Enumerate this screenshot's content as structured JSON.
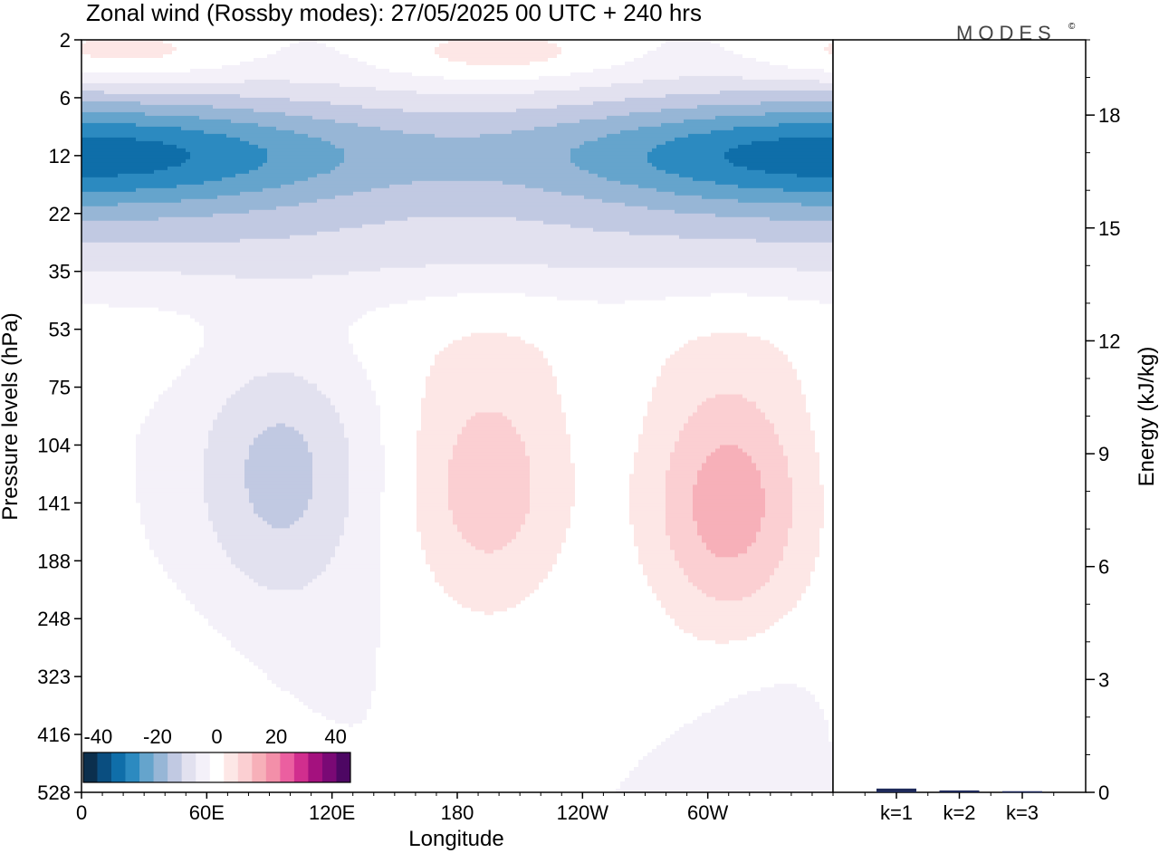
{
  "chart_data": [
    {
      "type": "heatmap",
      "title": "Zonal wind (Rossby modes):  27/05/2025  00 UTC  + 240 hrs",
      "xlabel": "Longitude",
      "ylabel": "Pressure levels (hPa)",
      "x_tick_labels": [
        "0",
        "60E",
        "120E",
        "180",
        "120W",
        "60W"
      ],
      "x_tick_lon_deg": [
        0,
        60,
        120,
        180,
        240,
        300
      ],
      "xlim_deg": [
        0,
        360
      ],
      "y_tick_labels": [
        "2",
        "6",
        "12",
        "22",
        "35",
        "53",
        "75",
        "104",
        "141",
        "188",
        "248",
        "323",
        "416",
        "528"
      ],
      "y_scale": "level index (pressure increasing downward)",
      "colorbar": {
        "labels": [
          "-40",
          "-20",
          "0",
          "20",
          "40"
        ],
        "label_values": [
          -40,
          -20,
          0,
          20,
          40
        ],
        "range": [
          -45,
          45
        ],
        "step": 5,
        "colors": [
          "#0b2f4d",
          "#0a4e80",
          "#0f6ea9",
          "#2c8ac0",
          "#65a4cc",
          "#97b6d6",
          "#c1c9e2",
          "#e2e1ef",
          "#f4f1f9",
          "#ffffff",
          "#fde7e6",
          "#fbcfd2",
          "#f7b0b9",
          "#f38fa9",
          "#eb5fa0",
          "#d12e8e",
          "#a4117e",
          "#7a0975",
          "#4d0763"
        ]
      },
      "features": [
        {
          "lon": 30,
          "level": 1.85,
          "value": -35,
          "desc": "easterly maximum west end"
        },
        {
          "lon": 180,
          "level": 2.1,
          "value": -30,
          "desc": "easterly band"
        },
        {
          "lon": 345,
          "level": 1.85,
          "value": -35,
          "desc": "easterly maximum east end"
        },
        {
          "lon": 95,
          "level": 7.5,
          "value": -12,
          "desc": "easterly anomaly"
        },
        {
          "lon": 195,
          "level": 7.7,
          "value": 13,
          "desc": "westerly anomaly"
        },
        {
          "lon": 310,
          "level": 8.0,
          "value": 18,
          "desc": "westerly anomaly"
        },
        {
          "lon": 160,
          "level": 0.3,
          "value": 10,
          "desc": "upper westerly"
        },
        {
          "lon": 290,
          "level": 0.3,
          "value": 10,
          "desc": "upper westerly"
        }
      ]
    },
    {
      "type": "bar",
      "categories": [
        "k=1",
        "k=2",
        "k=3"
      ],
      "values": [
        0.1,
        0.05,
        0.03
      ],
      "ylabel": "Energy (kJ/kg)",
      "y_ticks": [
        0,
        3,
        6,
        9,
        12,
        15,
        18
      ],
      "ylim": [
        0,
        20
      ]
    }
  ],
  "branding": {
    "logo": "MODES",
    "mark": "©"
  }
}
